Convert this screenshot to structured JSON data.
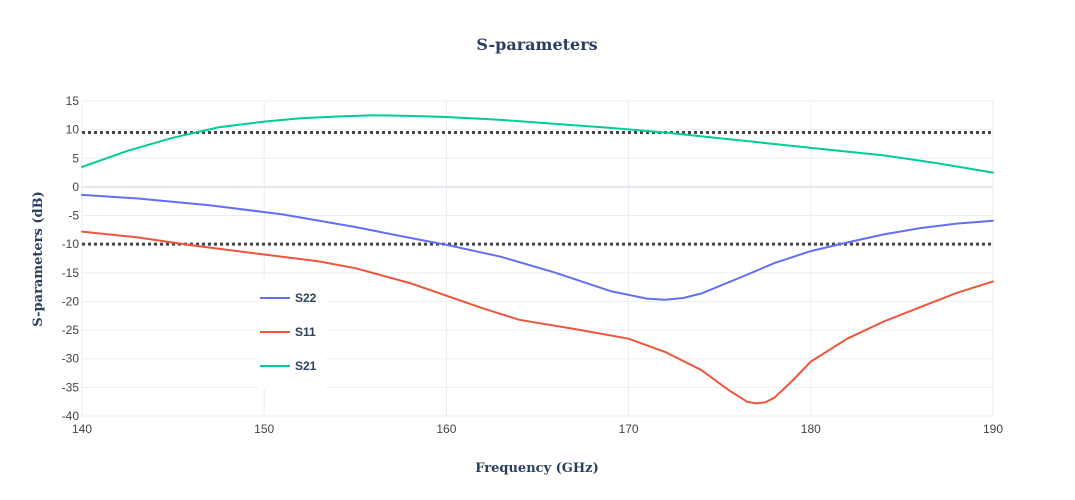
{
  "chart_data": {
    "type": "line",
    "title": "S-parameters",
    "xlabel": "Frequency (GHz)",
    "ylabel": "S-parameters (dB)",
    "xlim": [
      140,
      190
    ],
    "ylim": [
      -40,
      15
    ],
    "x_ticks": [
      140,
      150,
      160,
      170,
      180,
      190
    ],
    "y_ticks": [
      15,
      10,
      5,
      0,
      -5,
      -10,
      -15,
      -20,
      -25,
      -30,
      -35,
      -40
    ],
    "grid": true,
    "legend_position": "lower-left inside plot",
    "hlines": [
      {
        "y": 9.5,
        "style": "dotted",
        "color": "#444444"
      },
      {
        "y": -10,
        "style": "dotted",
        "color": "#444444"
      }
    ],
    "series": [
      {
        "name": "S22",
        "color": "#636efa",
        "x": [
          140,
          143,
          147,
          151,
          155,
          158,
          160,
          163,
          166,
          169,
          171,
          172,
          173,
          174,
          176,
          178,
          180,
          182,
          184,
          186,
          188,
          190
        ],
        "values": [
          -1.4,
          -2.0,
          -3.2,
          -4.8,
          -7.0,
          -8.9,
          -10.1,
          -12.2,
          -15.0,
          -18.2,
          -19.5,
          -19.7,
          -19.4,
          -18.6,
          -16.0,
          -13.3,
          -11.2,
          -9.7,
          -8.3,
          -7.2,
          -6.4,
          -5.9
        ]
      },
      {
        "name": "S11",
        "color": "#ef553b",
        "x": [
          140,
          143,
          146,
          150,
          153,
          155,
          158,
          160,
          162,
          164,
          167,
          170,
          172,
          174,
          175.5,
          176.5,
          177,
          177.5,
          178,
          179,
          180,
          182,
          184,
          186,
          188,
          190
        ],
        "values": [
          -7.8,
          -8.8,
          -10.2,
          -11.8,
          -13.0,
          -14.2,
          -16.8,
          -19.0,
          -21.2,
          -23.2,
          -24.8,
          -26.5,
          -28.8,
          -32.0,
          -35.5,
          -37.5,
          -37.8,
          -37.6,
          -36.8,
          -33.8,
          -30.5,
          -26.5,
          -23.5,
          -21.0,
          -18.5,
          -16.5
        ]
      },
      {
        "name": "S21",
        "color": "#00cc96",
        "x": [
          140,
          142.5,
          145,
          147.5,
          150,
          152,
          154,
          156,
          158,
          160,
          163,
          166,
          169,
          172,
          175,
          178,
          181,
          184,
          187,
          190
        ],
        "values": [
          3.5,
          6.3,
          8.6,
          10.4,
          11.4,
          12.0,
          12.3,
          12.5,
          12.4,
          12.2,
          11.7,
          11.0,
          10.3,
          9.5,
          8.5,
          7.5,
          6.5,
          5.5,
          4.1,
          2.5
        ]
      }
    ]
  }
}
